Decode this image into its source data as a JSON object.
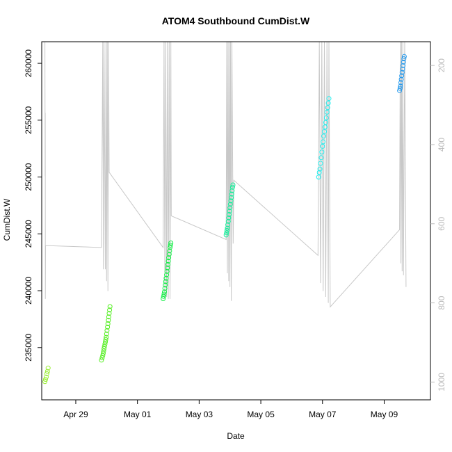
{
  "chart_data": {
    "type": "scatter",
    "title": "ATOM4 Southbound CumDist.W",
    "xlabel": "Date",
    "ylabel": "CumDist.W",
    "x_is_date": true,
    "xlim": [
      "2019-04-27T21:30",
      "2019-05-10T12:00"
    ],
    "ylim": [
      230400,
      261900
    ],
    "x_ticks": [
      {
        "value": "2019-04-29",
        "label": "Apr 29"
      },
      {
        "value": "2019-05-01",
        "label": "May 01"
      },
      {
        "value": "2019-05-03",
        "label": "May 03"
      },
      {
        "value": "2019-05-05",
        "label": "May 05"
      },
      {
        "value": "2019-05-07",
        "label": "May 07"
      },
      {
        "value": "2019-05-09",
        "label": "May 09"
      }
    ],
    "y_ticks": [
      {
        "value": 235000,
        "label": "235000"
      },
      {
        "value": 240000,
        "label": "240000"
      },
      {
        "value": 245000,
        "label": "245000"
      },
      {
        "value": 250000,
        "label": "250000"
      },
      {
        "value": 255000,
        "label": "255000"
      },
      {
        "value": 260000,
        "label": "260000"
      }
    ],
    "secondary_axis": {
      "side": "right",
      "color": "#bbbbbb",
      "ylim": [
        1045,
        140
      ],
      "ticks": [
        {
          "value": 200,
          "label": "200"
        },
        {
          "value": 400,
          "label": "400"
        },
        {
          "value": 600,
          "label": "600"
        },
        {
          "value": 800,
          "label": "800"
        },
        {
          "value": 1000,
          "label": "1000"
        }
      ]
    },
    "grid": false,
    "legend": "none",
    "background_line": {
      "color": "#c8c8c8",
      "axis": "secondary",
      "points": [
        [
          "2019-04-28T00:00",
          140
        ],
        [
          "2019-04-28T00:05",
          350
        ],
        [
          "2019-04-28T00:10",
          480
        ],
        [
          "2019-04-28T00:15",
          320
        ],
        [
          "2019-04-28T00:20",
          790
        ],
        [
          "2019-04-28T00:30",
          655
        ],
        [
          "2019-04-29T20:00",
          660
        ],
        [
          "2019-04-29T21:00",
          140
        ],
        [
          "2019-04-29T21:30",
          715
        ],
        [
          "2019-04-29T22:00",
          140
        ],
        [
          "2019-04-29T23:00",
          715
        ],
        [
          "2019-04-29T23:30",
          140
        ],
        [
          "2019-04-30T00:00",
          745
        ],
        [
          "2019-04-30T00:30",
          140
        ],
        [
          "2019-04-30T01:00",
          770
        ],
        [
          "2019-04-30T01:30",
          140
        ],
        [
          "2019-04-30T02:00",
          470
        ],
        [
          "2019-05-01T20:00",
          660
        ],
        [
          "2019-05-01T20:40",
          140
        ],
        [
          "2019-05-01T21:20",
          790
        ],
        [
          "2019-05-01T22:00",
          140
        ],
        [
          "2019-05-01T22:40",
          785
        ],
        [
          "2019-05-01T23:20",
          140
        ],
        [
          "2019-05-02T00:00",
          790
        ],
        [
          "2019-05-02T00:40",
          140
        ],
        [
          "2019-05-02T01:20",
          790
        ],
        [
          "2019-05-02T02:00",
          140
        ],
        [
          "2019-05-02T02:20",
          580
        ],
        [
          "2019-05-03T21:00",
          640
        ],
        [
          "2019-05-03T21:30",
          140
        ],
        [
          "2019-05-03T22:00",
          725
        ],
        [
          "2019-05-03T22:30",
          140
        ],
        [
          "2019-05-03T23:00",
          745
        ],
        [
          "2019-05-03T23:30",
          140
        ],
        [
          "2019-05-04T00:00",
          760
        ],
        [
          "2019-05-04T00:30",
          140
        ],
        [
          "2019-05-04T01:00",
          795
        ],
        [
          "2019-05-04T01:30",
          140
        ],
        [
          "2019-05-04T02:30",
          650
        ],
        [
          "2019-05-04T03:00",
          490
        ],
        [
          "2019-05-06T20:30",
          680
        ],
        [
          "2019-05-06T21:30",
          140
        ],
        [
          "2019-05-06T22:30",
          750
        ],
        [
          "2019-05-06T23:30",
          140
        ],
        [
          "2019-05-07T00:30",
          770
        ],
        [
          "2019-05-07T01:30",
          140
        ],
        [
          "2019-05-07T02:30",
          785
        ],
        [
          "2019-05-07T03:30",
          140
        ],
        [
          "2019-05-07T04:30",
          800
        ],
        [
          "2019-05-07T05:00",
          140
        ],
        [
          "2019-05-07T06:00",
          810
        ],
        [
          "2019-05-09T12:00",
          615
        ],
        [
          "2019-05-09T12:30",
          140
        ],
        [
          "2019-05-09T13:00",
          700
        ],
        [
          "2019-05-09T13:30",
          140
        ],
        [
          "2019-05-09T14:00",
          720
        ],
        [
          "2019-05-09T14:30",
          140
        ],
        [
          "2019-05-09T15:00",
          730
        ],
        [
          "2019-05-09T16:00",
          140
        ],
        [
          "2019-05-09T17:00",
          760
        ]
      ]
    },
    "series": [
      {
        "color": "#99ee33",
        "points": [
          [
            "2019-04-28T00:00",
            232000
          ],
          [
            "2019-04-28T00:30",
            232200
          ],
          [
            "2019-04-28T01:00",
            232400
          ],
          [
            "2019-04-28T01:30",
            232700
          ],
          [
            "2019-04-28T02:00",
            232900
          ],
          [
            "2019-04-28T02:30",
            233200
          ]
        ]
      },
      {
        "color": "#55ee22",
        "points": [
          [
            "2019-04-29T20:00",
            233900
          ],
          [
            "2019-04-29T20:30",
            234100
          ],
          [
            "2019-04-29T21:00",
            234300
          ],
          [
            "2019-04-29T21:20",
            234500
          ],
          [
            "2019-04-29T21:40",
            234700
          ],
          [
            "2019-04-29T22:00",
            234900
          ],
          [
            "2019-04-29T22:20",
            235100
          ],
          [
            "2019-04-29T22:40",
            235300
          ],
          [
            "2019-04-29T23:00",
            235500
          ],
          [
            "2019-04-29T23:20",
            235700
          ],
          [
            "2019-04-29T23:40",
            235900
          ],
          [
            "2019-04-30T00:00",
            236200
          ],
          [
            "2019-04-30T00:20",
            236500
          ],
          [
            "2019-04-30T00:40",
            236800
          ],
          [
            "2019-04-30T01:00",
            237100
          ],
          [
            "2019-04-30T01:20",
            237400
          ],
          [
            "2019-04-30T01:40",
            237700
          ],
          [
            "2019-04-30T02:00",
            238000
          ],
          [
            "2019-04-30T02:20",
            238300
          ],
          [
            "2019-04-30T02:40",
            238600
          ]
        ]
      },
      {
        "color": "#11ee44",
        "points": [
          [
            "2019-05-01T20:00",
            239300
          ],
          [
            "2019-05-01T20:20",
            239500
          ],
          [
            "2019-05-01T20:40",
            239700
          ],
          [
            "2019-05-01T21:00",
            239900
          ],
          [
            "2019-05-01T21:20",
            240200
          ],
          [
            "2019-05-01T21:40",
            240500
          ],
          [
            "2019-05-01T22:00",
            240800
          ],
          [
            "2019-05-01T22:20",
            241100
          ],
          [
            "2019-05-01T22:40",
            241400
          ],
          [
            "2019-05-01T23:00",
            241700
          ],
          [
            "2019-05-01T23:20",
            242000
          ],
          [
            "2019-05-01T23:40",
            242300
          ],
          [
            "2019-05-02T00:00",
            242600
          ],
          [
            "2019-05-02T00:20",
            242900
          ],
          [
            "2019-05-02T00:40",
            243200
          ],
          [
            "2019-05-02T01:00",
            243500
          ],
          [
            "2019-05-02T01:20",
            243800
          ],
          [
            "2019-05-02T01:40",
            244000
          ],
          [
            "2019-05-02T02:00",
            244200
          ]
        ]
      },
      {
        "color": "#11ee99",
        "points": [
          [
            "2019-05-03T21:00",
            244900
          ],
          [
            "2019-05-03T21:20",
            245100
          ],
          [
            "2019-05-03T21:40",
            245300
          ],
          [
            "2019-05-03T22:00",
            245500
          ],
          [
            "2019-05-03T22:20",
            245800
          ],
          [
            "2019-05-03T22:40",
            246100
          ],
          [
            "2019-05-03T23:00",
            246400
          ],
          [
            "2019-05-03T23:20",
            246700
          ],
          [
            "2019-05-03T23:40",
            247000
          ],
          [
            "2019-05-04T00:00",
            247300
          ],
          [
            "2019-05-04T00:20",
            247600
          ],
          [
            "2019-05-04T00:40",
            247900
          ],
          [
            "2019-05-04T01:00",
            248200
          ],
          [
            "2019-05-04T01:20",
            248500
          ],
          [
            "2019-05-04T01:40",
            248800
          ],
          [
            "2019-05-04T02:00",
            249100
          ],
          [
            "2019-05-04T02:20",
            249300
          ]
        ]
      },
      {
        "color": "#22eeee",
        "points": [
          [
            "2019-05-06T21:00",
            250000
          ],
          [
            "2019-05-06T21:30",
            250400
          ],
          [
            "2019-05-06T22:00",
            250700
          ],
          [
            "2019-05-06T22:30",
            251200
          ],
          [
            "2019-05-06T23:00",
            251700
          ],
          [
            "2019-05-06T23:30",
            252200
          ],
          [
            "2019-05-07T00:00",
            252700
          ],
          [
            "2019-05-07T00:30",
            253100
          ],
          [
            "2019-05-07T01:00",
            253600
          ],
          [
            "2019-05-07T01:30",
            254000
          ],
          [
            "2019-05-07T02:00",
            254400
          ],
          [
            "2019-05-07T02:30",
            254800
          ],
          [
            "2019-05-07T03:00",
            255200
          ],
          [
            "2019-05-07T03:30",
            255700
          ],
          [
            "2019-05-07T04:00",
            256100
          ],
          [
            "2019-05-07T04:30",
            256500
          ],
          [
            "2019-05-07T05:00",
            256900
          ]
        ]
      },
      {
        "color": "#2299ee",
        "points": [
          [
            "2019-05-09T12:00",
            257600
          ],
          [
            "2019-05-09T12:20",
            257800
          ],
          [
            "2019-05-09T12:40",
            258000
          ],
          [
            "2019-05-09T13:00",
            258300
          ],
          [
            "2019-05-09T13:20",
            258600
          ],
          [
            "2019-05-09T13:40",
            258900
          ],
          [
            "2019-05-09T14:00",
            259200
          ],
          [
            "2019-05-09T14:20",
            259500
          ],
          [
            "2019-05-09T14:40",
            259800
          ],
          [
            "2019-05-09T15:00",
            260100
          ],
          [
            "2019-05-09T15:20",
            260400
          ],
          [
            "2019-05-09T15:40",
            260600
          ]
        ]
      }
    ]
  }
}
